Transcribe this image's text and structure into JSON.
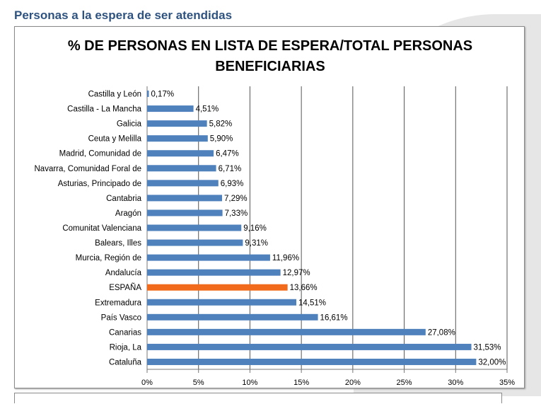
{
  "heading": "Personas a la espera de ser atendidas",
  "chart_data": {
    "type": "bar",
    "orientation": "horizontal",
    "title": "% DE PERSONAS EN LISTA DE ESPERA/TOTAL PERSONAS BENEFICIARIAS",
    "title_lines": [
      "% DE PERSONAS EN LISTA DE ESPERA/TOTAL PERSONAS",
      "BENEFICIARIAS"
    ],
    "categories": [
      "Castilla y León",
      "Castilla - La Mancha",
      "Galicia",
      "Ceuta y Melilla",
      "Madrid, Comunidad de",
      "Navarra, Comunidad Foral de",
      "Asturias, Principado de",
      "Cantabria",
      "Aragón",
      "Comunitat Valenciana",
      "Balears, Illes",
      "Murcia, Región de",
      "Andalucía",
      "ESPAÑA",
      "Extremadura",
      "País Vasco",
      "Canarias",
      "Rioja, La",
      "Cataluña"
    ],
    "values": [
      0.17,
      4.51,
      5.82,
      5.9,
      6.47,
      6.71,
      6.93,
      7.29,
      7.33,
      9.16,
      9.31,
      11.96,
      12.97,
      13.66,
      14.51,
      16.61,
      27.08,
      31.53,
      32.0
    ],
    "data_labels": [
      "0,17%",
      "4,51%",
      "5,82%",
      "5,90%",
      "6,47%",
      "6,71%",
      "6,93%",
      "7,29%",
      "7,33%",
      "9,16%",
      "9,31%",
      "11,96%",
      "12,97%",
      "13,66%",
      "14,51%",
      "16,61%",
      "27,08%",
      "31,53%",
      "32,00%"
    ],
    "xlim": [
      0,
      35
    ],
    "xticks": [
      0,
      5,
      10,
      15,
      20,
      25,
      30,
      35
    ],
    "xtick_labels": [
      "0%",
      "5%",
      "10%",
      "15%",
      "20%",
      "25%",
      "30%",
      "35%"
    ],
    "grid": "vertical",
    "legend": "none",
    "colors": {
      "bar": "#4f81bd",
      "highlight": "#f26a1b",
      "highlight_category": "ESPAÑA",
      "grid": "#555555"
    }
  }
}
